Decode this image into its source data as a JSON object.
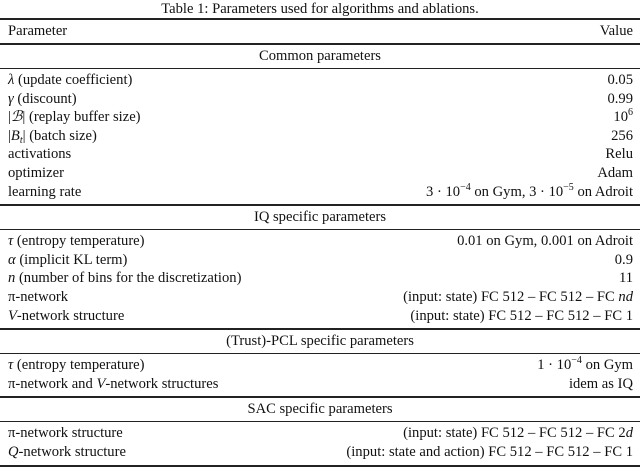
{
  "caption": "Table 1: Parameters used for algorithms and ablations.",
  "columns": {
    "parameter": "Parameter",
    "value": "Value"
  },
  "sections": [
    {
      "title": "Common parameters",
      "rows": [
        {
          "param": [
            {
              "t": "λ",
              "s": "i"
            },
            {
              "t": " (update coefficient)"
            }
          ],
          "value": [
            {
              "t": "0.05"
            }
          ]
        },
        {
          "param": [
            {
              "t": "γ",
              "s": "i"
            },
            {
              "t": " (discount)"
            }
          ],
          "value": [
            {
              "t": "0.99"
            }
          ]
        },
        {
          "param": [
            {
              "t": "|"
            },
            {
              "t": "ℬ",
              "s": "i"
            },
            {
              "t": "| (replay buffer size)"
            }
          ],
          "value": [
            {
              "t": "10"
            },
            {
              "t": "6",
              "s": "sup"
            }
          ]
        },
        {
          "param": [
            {
              "t": "|"
            },
            {
              "t": "B",
              "s": "i"
            },
            {
              "t": "t",
              "s": "sub"
            },
            {
              "t": "| (batch size)"
            }
          ],
          "value": [
            {
              "t": "256"
            }
          ]
        },
        {
          "param": [
            {
              "t": "activations"
            }
          ],
          "value": [
            {
              "t": "Relu"
            }
          ]
        },
        {
          "param": [
            {
              "t": "optimizer"
            }
          ],
          "value": [
            {
              "t": "Adam"
            }
          ]
        },
        {
          "param": [
            {
              "t": "learning rate"
            }
          ],
          "value": [
            {
              "t": "3 · 10"
            },
            {
              "t": "−4",
              "s": "sup"
            },
            {
              "t": " on Gym, 3 · 10"
            },
            {
              "t": "−5",
              "s": "sup"
            },
            {
              "t": " on Adroit"
            }
          ]
        }
      ]
    },
    {
      "title": "IQ specific parameters",
      "rows": [
        {
          "param": [
            {
              "t": "τ",
              "s": "i"
            },
            {
              "t": " (entropy temperature)"
            }
          ],
          "value": [
            {
              "t": "0.01 on Gym, 0.001 on Adroit"
            }
          ]
        },
        {
          "param": [
            {
              "t": "α",
              "s": "i"
            },
            {
              "t": " (implicit KL term)"
            }
          ],
          "value": [
            {
              "t": "0.9"
            }
          ]
        },
        {
          "param": [
            {
              "t": "n",
              "s": "i"
            },
            {
              "t": " (number of bins for the discretization)"
            }
          ],
          "value": [
            {
              "t": "11"
            }
          ]
        },
        {
          "param": [
            {
              "t": "π"
            },
            {
              "t": "-network"
            }
          ],
          "value": [
            {
              "t": "(input: state) FC 512 – FC 512 – FC "
            },
            {
              "t": "nd",
              "s": "i"
            }
          ]
        },
        {
          "param": [
            {
              "t": "V",
              "s": "i"
            },
            {
              "t": "-network structure"
            }
          ],
          "value": [
            {
              "t": "(input: state) FC 512 – FC 512 – FC 1"
            }
          ]
        }
      ]
    },
    {
      "title": "(Trust)-PCL specific parameters",
      "rows": [
        {
          "param": [
            {
              "t": "τ",
              "s": "i"
            },
            {
              "t": " (entropy temperature)"
            }
          ],
          "value": [
            {
              "t": "1 · 10"
            },
            {
              "t": "−4",
              "s": "sup"
            },
            {
              "t": " on Gym"
            }
          ]
        },
        {
          "param": [
            {
              "t": "π"
            },
            {
              "t": "-network and "
            },
            {
              "t": "V",
              "s": "i"
            },
            {
              "t": "-network structures"
            }
          ],
          "value": [
            {
              "t": "idem as IQ"
            }
          ]
        }
      ]
    },
    {
      "title": "SAC specific parameters",
      "rows": [
        {
          "param": [
            {
              "t": "π"
            },
            {
              "t": "-network structure"
            }
          ],
          "value": [
            {
              "t": "(input: state) FC 512 – FC 512 – FC 2"
            },
            {
              "t": "d",
              "s": "i"
            }
          ]
        },
        {
          "param": [
            {
              "t": "Q",
              "s": "i"
            },
            {
              "t": "-network structure"
            }
          ],
          "value": [
            {
              "t": "(input: state and action) FC 512 – FC 512 – FC 1"
            }
          ]
        }
      ]
    }
  ]
}
